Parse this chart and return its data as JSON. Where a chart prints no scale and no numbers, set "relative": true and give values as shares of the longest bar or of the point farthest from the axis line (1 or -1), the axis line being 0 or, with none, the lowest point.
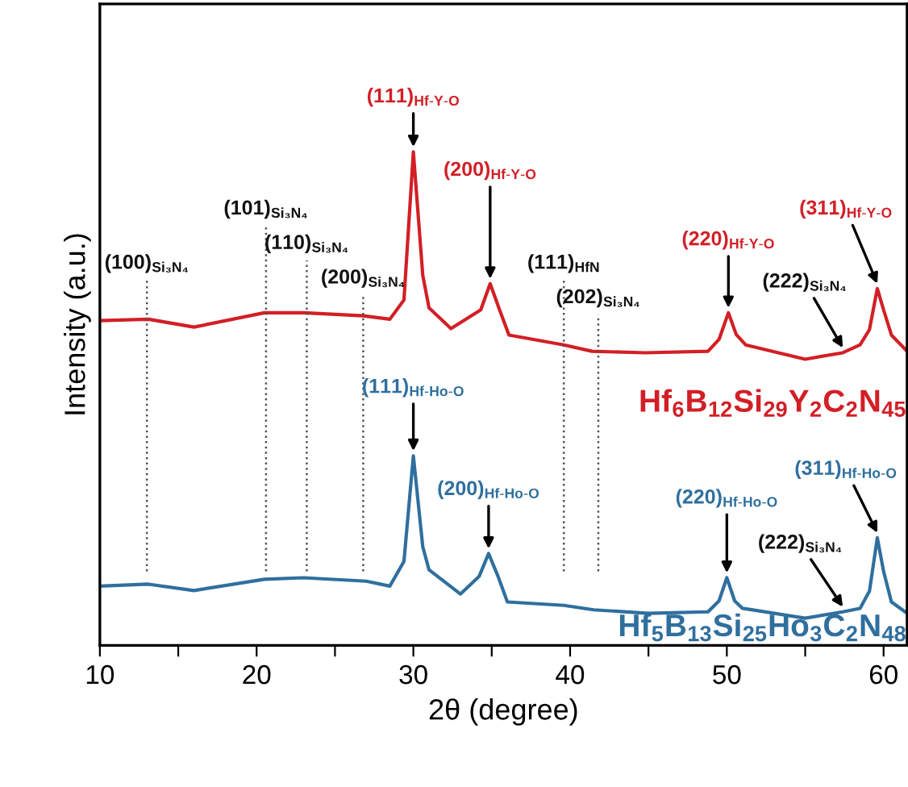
{
  "chart_data": {
    "type": "line",
    "relative": true,
    "xlabel": "2θ (degree)",
    "ylabel": "Intensity (a.u.)",
    "xlim": [
      10,
      61.5
    ],
    "xticks": [
      10,
      {
        "value": 15,
        "label": null
      },
      20,
      {
        "value": 25,
        "label": null
      },
      30,
      {
        "value": 35,
        "label": null
      },
      40,
      {
        "value": 45,
        "label": null
      },
      50,
      {
        "value": 55,
        "label": null
      },
      60
    ],
    "grid": false,
    "legend": false,
    "marker": "none",
    "line_style": "solid",
    "series": [
      {
        "name": "Hf$_{6}$B$_{12}$Si$_{29}$Y$_{2}$C$_{2}$N$_{45}$",
        "color": "#d21f26",
        "x": [
          10,
          13.1,
          16,
          20.5,
          23,
          26.8,
          28.5,
          29.4,
          30,
          30.6,
          31,
          32.4,
          34.3,
          34.9,
          35.5,
          36.1,
          39.6,
          41.4,
          44.8,
          48.8,
          49.5,
          50.1,
          50.6,
          51.2,
          55,
          57.4,
          58.5,
          59.1,
          59.6,
          60,
          60.5,
          61.5
        ],
        "values": [
          0.658,
          0.661,
          0.645,
          0.674,
          0.674,
          0.668,
          0.661,
          0.7,
          1.0,
          0.75,
          0.684,
          0.642,
          0.68,
          0.733,
          0.68,
          0.629,
          0.609,
          0.596,
          0.593,
          0.596,
          0.62,
          0.674,
          0.63,
          0.609,
          0.58,
          0.593,
          0.609,
          0.64,
          0.723,
          0.68,
          0.629,
          0.596
        ]
      },
      {
        "name": "Hf$_{5}$B$_{13}$Si$_{25}$Ho$_{3}$C$_{2}$N$_{48}$",
        "color": "#2f6f9e",
        "x": [
          10,
          13.1,
          16,
          20.5,
          23,
          27,
          28.5,
          29.4,
          30,
          30.6,
          31,
          33,
          34.2,
          34.8,
          35.4,
          36,
          39.6,
          41.5,
          45,
          48.8,
          49.5,
          50,
          50.5,
          51,
          55,
          57.4,
          58.5,
          59.1,
          59.6,
          60,
          60.5,
          61.5
        ],
        "values": [
          0.12,
          0.124,
          0.111,
          0.134,
          0.137,
          0.13,
          0.12,
          0.17,
          0.384,
          0.2,
          0.153,
          0.104,
          0.14,
          0.186,
          0.14,
          0.088,
          0.081,
          0.072,
          0.065,
          0.068,
          0.09,
          0.137,
          0.09,
          0.075,
          0.055,
          0.068,
          0.075,
          0.11,
          0.218,
          0.15,
          0.088,
          0.065
        ]
      }
    ],
    "ref_lines": [
      {
        "axis": "x",
        "value": 13,
        "color": "#555555",
        "line_style": "dotted"
      },
      {
        "axis": "x",
        "value": 20.6,
        "color": "#555555",
        "line_style": "dotted"
      },
      {
        "axis": "x",
        "value": 23.2,
        "color": "#555555",
        "line_style": "dotted"
      },
      {
        "axis": "x",
        "value": 26.8,
        "color": "#555555",
        "line_style": "dotted"
      },
      {
        "axis": "x",
        "value": 39.6,
        "color": "#555555",
        "line_style": "dotted"
      },
      {
        "axis": "x",
        "value": 41.8,
        "color": "#555555",
        "line_style": "dotted"
      }
    ],
    "annotations": [
      {
        "text": "(100)$_{Si₃N₄}$",
        "x": 13,
        "y": 0.75
      },
      {
        "text": "(101)$_{Si₃N₄}$",
        "x": 20.6,
        "y": 0.86
      },
      {
        "text": "(110)$_{Si₃N₄}$",
        "x": 23.2,
        "y": 0.79
      },
      {
        "text": "(200)$_{Si₃N₄}$",
        "x": 26.8,
        "y": 0.72
      },
      {
        "text": "(111)$_{Hf-Y-O}$",
        "x": 30,
        "y": 1.0
      },
      {
        "text": "(200)$_{Hf-Y-O}$",
        "x": 34.9,
        "y": 0.733
      },
      {
        "text": "(111)$_{HfN}$",
        "x": 39.6,
        "y": 0.75
      },
      {
        "text": "(202)$_{Si₃N₄}$",
        "x": 41.8,
        "y": 0.68
      },
      {
        "text": "(220)$_{Hf-Y-O}$",
        "x": 50.1,
        "y": 0.674
      },
      {
        "text": "(222)$_{Si₃N₄}$",
        "x": 57.4,
        "y": 0.593
      },
      {
        "text": "(311)$_{Hf-Y-O}$",
        "x": 59.6,
        "y": 0.723
      },
      {
        "text": "(111)$_{Hf-Ho-O}$",
        "x": 30,
        "y": 0.384
      },
      {
        "text": "(200)$_{Hf-Ho-O}$",
        "x": 34.8,
        "y": 0.186
      },
      {
        "text": "(220)$_{Hf-Ho-O}$",
        "x": 50,
        "y": 0.137
      },
      {
        "text": "(222)$_{Si₃N₄}$",
        "x": 57.4,
        "y": 0.068
      },
      {
        "text": "(311)$_{Hf-Ho-O}$",
        "x": 59.6,
        "y": 0.218
      }
    ]
  }
}
